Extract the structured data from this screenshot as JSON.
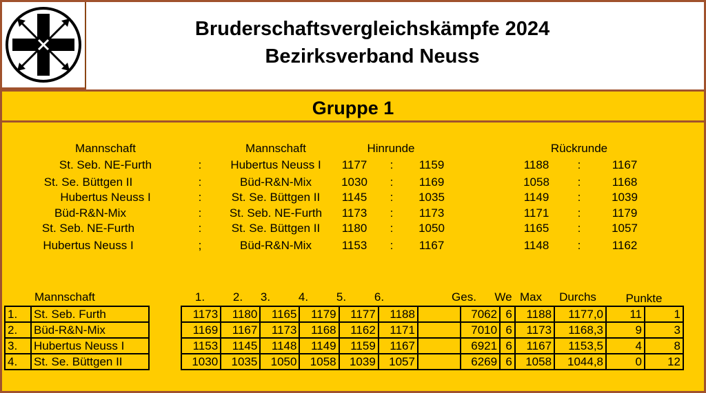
{
  "header": {
    "title_line1": "Bruderschaftsvergleichskämpfe 2024",
    "title_line2": "Bezirksverband Neuss",
    "logo": "brotherhood-cross-arrows-logo"
  },
  "group_title": "Gruppe 1",
  "matches": {
    "headers": {
      "team_a": "Mannschaft",
      "team_b": "Mannschaft",
      "first_round": "Hinrunde",
      "second_round": "Rückrunde"
    },
    "rows": [
      {
        "team_a": "St. Seb. NE-Furth",
        "sep": ":",
        "team_b": "Hubertus Neuss I",
        "h1": "1177",
        "hsep": ":",
        "h2": "1159",
        "r1": "1188",
        "rsep": ":",
        "r2": "1167"
      },
      {
        "team_a": "St. Se. Büttgen II",
        "sep": ":",
        "team_b": "Büd-R&N-Mix",
        "h1": "1030",
        "hsep": ":",
        "h2": "1169",
        "r1": "1058",
        "rsep": ":",
        "r2": "1168"
      },
      {
        "team_a": "Hubertus Neuss I",
        "sep": ":",
        "team_b": "St. Se. Büttgen II",
        "h1": "1145",
        "hsep": ":",
        "h2": "1035",
        "r1": "1149",
        "rsep": ":",
        "r2": "1039"
      },
      {
        "team_a": "Büd-R&N-Mix",
        "sep": ":",
        "team_b": "St. Seb. NE-Furth",
        "h1": "1173",
        "hsep": ":",
        "h2": "1173",
        "r1": "1171",
        "rsep": ":",
        "r2": "1179"
      },
      {
        "team_a": "St. Seb. NE-Furth",
        "sep": ":",
        "team_b": "St. Se. Büttgen II",
        "h1": "1180",
        "hsep": ":",
        "h2": "1050",
        "r1": "1165",
        "rsep": ":",
        "r2": "1057"
      },
      {
        "team_a": "Hubertus Neuss I",
        "sep": ";",
        "team_b": "Büd-R&N-Mix",
        "h1": "1153",
        "hsep": ":",
        "h2": "1167",
        "r1": "1148",
        "rsep": ":",
        "r2": "1162"
      }
    ]
  },
  "standings": {
    "headers": {
      "team": "Mannschaft",
      "r1": "1.",
      "r2": "2.",
      "r3": "3.",
      "r4": "4.",
      "r5": "5.",
      "r6": "6.",
      "total": "Ges.",
      "we": "We",
      "max": "Max",
      "avg": "Durchs",
      "points": "Punkte"
    },
    "rows": [
      {
        "rank": "1.",
        "team": "St. Seb. Furth",
        "scores": [
          "1173",
          "1180",
          "1165",
          "1179",
          "1177",
          "1188"
        ],
        "total": "7062",
        "we": "6",
        "max": "1188",
        "avg": "1177,0",
        "pts_plus": "11",
        "pts_minus": "1"
      },
      {
        "rank": "2.",
        "team": "Büd-R&N-Mix",
        "scores": [
          "1169",
          "1167",
          "1173",
          "1168",
          "1162",
          "1171"
        ],
        "total": "7010",
        "we": "6",
        "max": "1173",
        "avg": "1168,3",
        "pts_plus": "9",
        "pts_minus": "3"
      },
      {
        "rank": "3.",
        "team": "Hubertus Neuss I",
        "scores": [
          "1153",
          "1145",
          "1148",
          "1149",
          "1159",
          "1167"
        ],
        "total": "6921",
        "we": "6",
        "max": "1167",
        "avg": "1153,5",
        "pts_plus": "4",
        "pts_minus": "8"
      },
      {
        "rank": "4.",
        "team": "St. Se. Büttgen II",
        "scores": [
          "1030",
          "1035",
          "1050",
          "1058",
          "1039",
          "1057"
        ],
        "total": "6269",
        "we": "6",
        "max": "1058",
        "avg": "1044,8",
        "pts_plus": "0",
        "pts_minus": "12"
      }
    ]
  },
  "colors": {
    "background": "#ffcc00",
    "border": "#a0522d",
    "header_bg": "#ffffff",
    "text": "#000000"
  }
}
